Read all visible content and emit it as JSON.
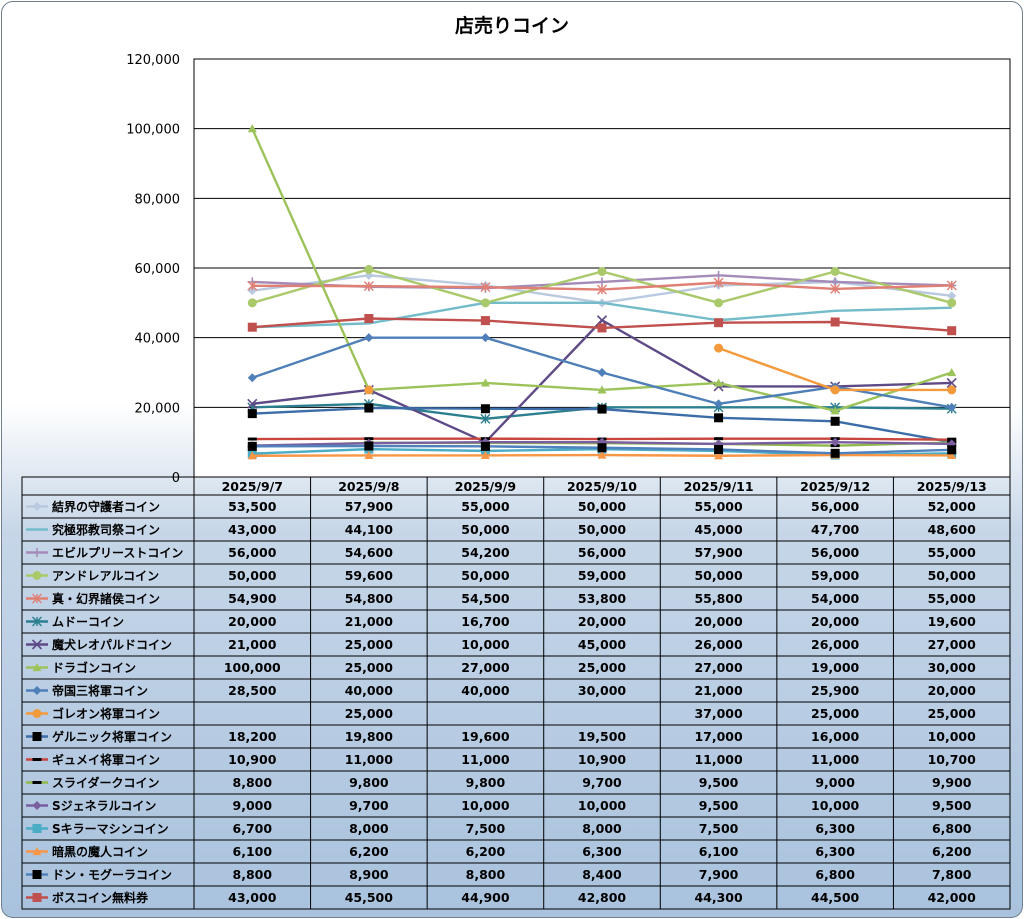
{
  "chart_data": {
    "type": "line",
    "title": "店売りコイン",
    "categories": [
      "2025/9/7",
      "2025/9/8",
      "2025/9/9",
      "2025/9/10",
      "2025/9/11",
      "2025/9/12",
      "2025/9/13"
    ],
    "ylim": [
      0,
      120000
    ],
    "yticks": [
      "0",
      "20,000",
      "40,000",
      "60,000",
      "80,000",
      "100,000",
      "120,000"
    ],
    "grid": true,
    "legend": "data-table",
    "series": [
      {
        "name": "結界の守護者コイン",
        "color": "#b9c9df",
        "marker": "diamond",
        "values": [
          53500,
          57900,
          55000,
          50000,
          55000,
          56000,
          52000
        ],
        "labels": [
          "53,500",
          "57,900",
          "55,000",
          "50,000",
          "55,000",
          "56,000",
          "52,000"
        ]
      },
      {
        "name": "究極邪教司祭コイン",
        "color": "#74bcc9",
        "marker": "none",
        "values": [
          43000,
          44100,
          50000,
          50000,
          45000,
          47700,
          48600
        ],
        "labels": [
          "43,000",
          "44,100",
          "50,000",
          "50,000",
          "45,000",
          "47,700",
          "48,600"
        ]
      },
      {
        "name": "エビルプリーストコイン",
        "color": "#a48bb8",
        "marker": "plus",
        "values": [
          56000,
          54600,
          54200,
          56000,
          57900,
          56000,
          55000
        ],
        "labels": [
          "56,000",
          "54,600",
          "54,200",
          "56,000",
          "57,900",
          "56,000",
          "55,000"
        ]
      },
      {
        "name": "アンドレアルコイン",
        "color": "#a9c96a",
        "marker": "circle",
        "values": [
          50000,
          59600,
          50000,
          59000,
          50000,
          59000,
          50000
        ],
        "labels": [
          "50,000",
          "59,600",
          "50,000",
          "59,000",
          "50,000",
          "59,000",
          "50,000"
        ]
      },
      {
        "name": "真・幻界諸侯コイン",
        "color": "#e07f74",
        "marker": "star",
        "values": [
          54900,
          54800,
          54500,
          53800,
          55800,
          54000,
          55000
        ],
        "labels": [
          "54,900",
          "54,800",
          "54,500",
          "53,800",
          "55,800",
          "54,000",
          "55,000"
        ]
      },
      {
        "name": "ムドーコイン",
        "color": "#2b7f8e",
        "marker": "star",
        "values": [
          20000,
          21000,
          16700,
          20000,
          20000,
          20000,
          19600
        ],
        "labels": [
          "20,000",
          "21,000",
          "16,700",
          "20,000",
          "20,000",
          "20,000",
          "19,600"
        ]
      },
      {
        "name": "魔犬レオパルドコイン",
        "color": "#5e4a86",
        "marker": "x",
        "values": [
          21000,
          25000,
          10000,
          45000,
          26000,
          26000,
          27000
        ],
        "labels": [
          "21,000",
          "25,000",
          "10,000",
          "45,000",
          "26,000",
          "26,000",
          "27,000"
        ]
      },
      {
        "name": "ドラゴンコイン",
        "color": "#9cc35a",
        "marker": "triangle",
        "values": [
          100000,
          25000,
          27000,
          25000,
          27000,
          19000,
          30000
        ],
        "labels": [
          "100,000",
          "25,000",
          "27,000",
          "25,000",
          "27,000",
          "19,000",
          "30,000"
        ]
      },
      {
        "name": "帝国三将軍コイン",
        "color": "#4f7fb8",
        "marker": "diamond",
        "values": [
          28500,
          40000,
          40000,
          30000,
          21000,
          25900,
          20000
        ],
        "labels": [
          "28,500",
          "40,000",
          "40,000",
          "30,000",
          "21,000",
          "25,900",
          "20,000"
        ]
      },
      {
        "name": "ゴレオン将軍コイン",
        "color": "#f39a3c",
        "marker": "circle",
        "values": [
          null,
          25000,
          null,
          null,
          37000,
          25000,
          25000
        ],
        "labels": [
          "",
          "25,000",
          "",
          "",
          "37,000",
          "25,000",
          "25,000"
        ]
      },
      {
        "name": "ゲルニック将軍コイン",
        "color": "#3c6da8",
        "marker": "square-black",
        "values": [
          18200,
          19800,
          19600,
          19500,
          17000,
          16000,
          10000
        ],
        "labels": [
          "18,200",
          "19,800",
          "19,600",
          "19,500",
          "17,000",
          "16,000",
          "10,000"
        ]
      },
      {
        "name": "ギュメイ将軍コイン",
        "color": "#c8463d",
        "marker": "dash-black",
        "values": [
          10900,
          11000,
          11000,
          10900,
          11000,
          11000,
          10700
        ],
        "labels": [
          "10,900",
          "11,000",
          "11,000",
          "10,900",
          "11,000",
          "11,000",
          "10,700"
        ]
      },
      {
        "name": "スライダークコイン",
        "color": "#90b84e",
        "marker": "dash-black",
        "values": [
          8800,
          9800,
          9800,
          9700,
          9500,
          9000,
          9900
        ],
        "labels": [
          "8,800",
          "9,800",
          "9,800",
          "9,700",
          "9,500",
          "9,000",
          "9,900"
        ]
      },
      {
        "name": "Sジェネラルコイン",
        "color": "#7a5fa0",
        "marker": "diamond",
        "values": [
          9000,
          9700,
          10000,
          10000,
          9500,
          10000,
          9500
        ],
        "labels": [
          "9,000",
          "9,700",
          "10,000",
          "10,000",
          "9,500",
          "10,000",
          "9,500"
        ]
      },
      {
        "name": "Sキラーマシンコイン",
        "color": "#4bacc6",
        "marker": "square",
        "values": [
          6700,
          8000,
          7500,
          8000,
          7500,
          6300,
          6800
        ],
        "labels": [
          "6,700",
          "8,000",
          "7,500",
          "8,000",
          "7,500",
          "6,300",
          "6,800"
        ]
      },
      {
        "name": "暗黒の魔人コイン",
        "color": "#f79646",
        "marker": "triangle",
        "values": [
          6100,
          6200,
          6200,
          6300,
          6100,
          6300,
          6200
        ],
        "labels": [
          "6,100",
          "6,200",
          "6,200",
          "6,300",
          "6,100",
          "6,300",
          "6,200"
        ]
      },
      {
        "name": "ドン・モグーラコイン",
        "color": "#4f81bd",
        "marker": "square-black",
        "values": [
          8800,
          8900,
          8800,
          8400,
          7900,
          6800,
          7800
        ],
        "labels": [
          "8,800",
          "8,900",
          "8,800",
          "8,400",
          "7,900",
          "6,800",
          "7,800"
        ]
      },
      {
        "name": "ボスコイン無料券",
        "color": "#c0504d",
        "marker": "square",
        "values": [
          43000,
          45500,
          44900,
          42800,
          44300,
          44500,
          42000
        ],
        "labels": [
          "43,000",
          "45,500",
          "44,900",
          "42,800",
          "44,300",
          "44,500",
          "42,000"
        ]
      }
    ]
  }
}
